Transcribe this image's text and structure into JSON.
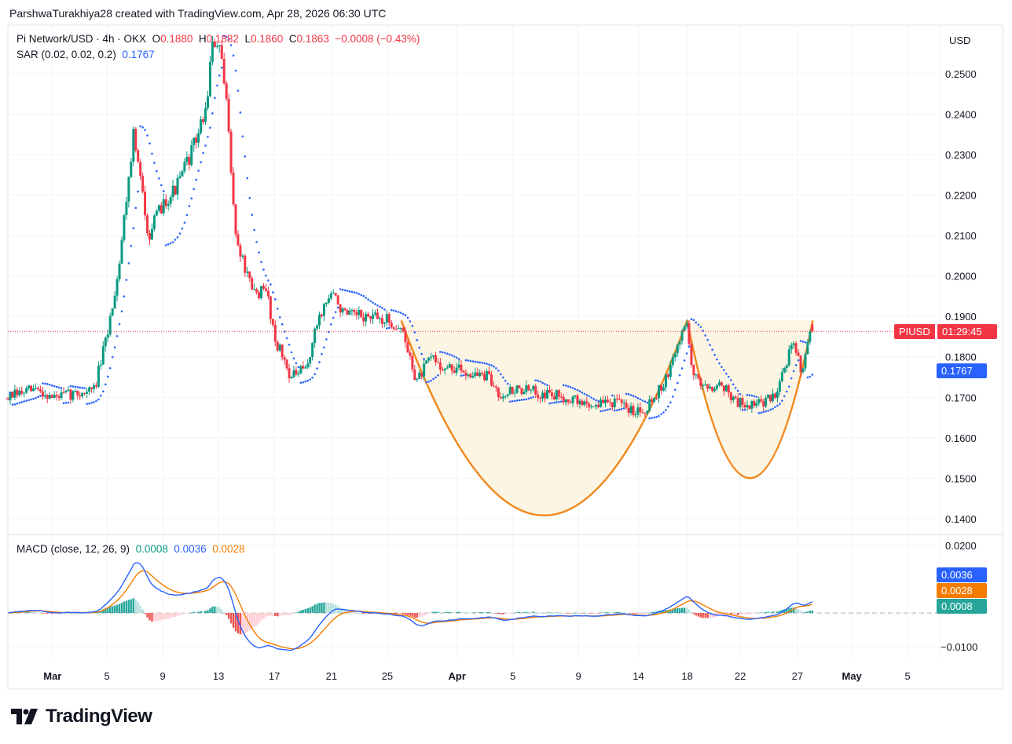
{
  "credit": "ParshwaTurakhiya28 created with TradingView.com, Apr 28, 2026 06:30 UTC",
  "legend": {
    "symbol": "Pi Network/USD · 4h · OKX",
    "o_label": "O",
    "o": "0.1880",
    "h_label": "H",
    "h": "0.1882",
    "l_label": "L",
    "l": "0.1860",
    "c_label": "C",
    "c": "0.1863",
    "change": "−0.0008 (−0.43%)",
    "sar_label": "SAR (0.02, 0.02, 0.2)",
    "sar_value": "0.1767",
    "macd_label": "MACD (close, 12, 26, 9)",
    "macd_hist": "0.0008",
    "macd_line": "0.0036",
    "macd_signal": "0.0028"
  },
  "price_axis": {
    "currency": "USD",
    "ticks": [
      "0.2500",
      "0.2400",
      "0.2300",
      "0.2200",
      "0.2100",
      "0.2000",
      "0.1900",
      "0.1800",
      "0.1700",
      "0.1600",
      "0.1500",
      "0.1400"
    ]
  },
  "macd_axis": {
    "ticks": [
      "0.0200",
      "−0.0100"
    ]
  },
  "badges": {
    "symbol": "PIUSD",
    "countdown": "01:29:45",
    "sar": "0.1767",
    "macd": "0.0036",
    "signal": "0.0028",
    "hist": "0.0008"
  },
  "logo": "TradingView",
  "colors": {
    "up": "#089981",
    "down": "#f23645",
    "sar": "#2962ff",
    "macd": "#2962ff",
    "signal": "#f57c00",
    "pattern": "#f0891e",
    "pattern_fill": "#fdf5e4"
  },
  "chart_data": {
    "type": "candlestick",
    "timeframe": "4h",
    "x_unit": "days since Feb 26",
    "xlim": [
      0,
      66.8
    ],
    "ylim": [
      0.1363,
      0.262
    ],
    "macd_ylim": [
      -0.0137,
      0.0228
    ],
    "x_ticks": [
      {
        "label": "Mar",
        "t": 3.2,
        "bold": true
      },
      {
        "label": "5",
        "t": 7.1
      },
      {
        "label": "9",
        "t": 11.1
      },
      {
        "label": "13",
        "t": 15.1
      },
      {
        "label": "17",
        "t": 19.1
      },
      {
        "label": "21",
        "t": 23.2
      },
      {
        "label": "25",
        "t": 27.2
      },
      {
        "label": "Apr",
        "t": 32.2,
        "bold": true
      },
      {
        "label": "5",
        "t": 36.2
      },
      {
        "label": "9",
        "t": 40.9
      },
      {
        "label": "14",
        "t": 45.2
      },
      {
        "label": "18",
        "t": 48.7
      },
      {
        "label": "22",
        "t": 52.5
      },
      {
        "label": "27",
        "t": 56.6
      },
      {
        "label": "May",
        "t": 60.5,
        "bold": true
      },
      {
        "label": "5",
        "t": 64.5
      }
    ],
    "price_path": [
      [
        0,
        0.17
      ],
      [
        2.0,
        0.172
      ],
      [
        3.2,
        0.17
      ],
      [
        5.1,
        0.171
      ],
      [
        6.2,
        0.172
      ],
      [
        7.1,
        0.185
      ],
      [
        7.9,
        0.201
      ],
      [
        9.0,
        0.235
      ],
      [
        10.1,
        0.21
      ],
      [
        11.1,
        0.218
      ],
      [
        12.1,
        0.222
      ],
      [
        13.2,
        0.231
      ],
      [
        14.2,
        0.241
      ],
      [
        14.6,
        0.256
      ],
      [
        15.1,
        0.258
      ],
      [
        15.8,
        0.239
      ],
      [
        16.3,
        0.21
      ],
      [
        17.5,
        0.196
      ],
      [
        18.6,
        0.196
      ],
      [
        19.1,
        0.185
      ],
      [
        20.3,
        0.175
      ],
      [
        21.4,
        0.177
      ],
      [
        22.3,
        0.19
      ],
      [
        23.2,
        0.196
      ],
      [
        24.2,
        0.19
      ],
      [
        25.4,
        0.19
      ],
      [
        27.2,
        0.189
      ],
      [
        28.2,
        0.187
      ],
      [
        29.3,
        0.174
      ],
      [
        30.4,
        0.18
      ],
      [
        31.3,
        0.177
      ],
      [
        32.1,
        0.177
      ],
      [
        33.2,
        0.176
      ],
      [
        34.4,
        0.175
      ],
      [
        35.2,
        0.171
      ],
      [
        36.6,
        0.172
      ],
      [
        38.3,
        0.171
      ],
      [
        40.0,
        0.17
      ],
      [
        41.7,
        0.168
      ],
      [
        43.4,
        0.169
      ],
      [
        44.5,
        0.167
      ],
      [
        45.6,
        0.167
      ],
      [
        46.5,
        0.171
      ],
      [
        47.3,
        0.175
      ],
      [
        48.0,
        0.183
      ],
      [
        48.7,
        0.189
      ],
      [
        49.1,
        0.175
      ],
      [
        50.1,
        0.173
      ],
      [
        51.3,
        0.173
      ],
      [
        52.1,
        0.169
      ],
      [
        53.5,
        0.168
      ],
      [
        54.9,
        0.17
      ],
      [
        55.8,
        0.179
      ],
      [
        56.3,
        0.183
      ],
      [
        56.9,
        0.177
      ],
      [
        57.5,
        0.186
      ],
      [
        57.7,
        0.1863
      ]
    ],
    "last_bar": {
      "open": 0.188,
      "high": 0.1882,
      "low": 0.186,
      "close": 0.1863
    },
    "current_price": 0.1863,
    "sar_params": [
      0.02,
      0.02,
      0.2
    ],
    "macd_params": [
      12,
      26,
      9
    ],
    "pattern": {
      "name": "cup and handle",
      "cup": {
        "start": 28.2,
        "end": 48.7,
        "rim": 0.189,
        "bottom": 0.1408
      },
      "handle": {
        "start": 48.7,
        "end": 57.7,
        "rim": 0.189,
        "bottom": 0.15
      }
    }
  }
}
